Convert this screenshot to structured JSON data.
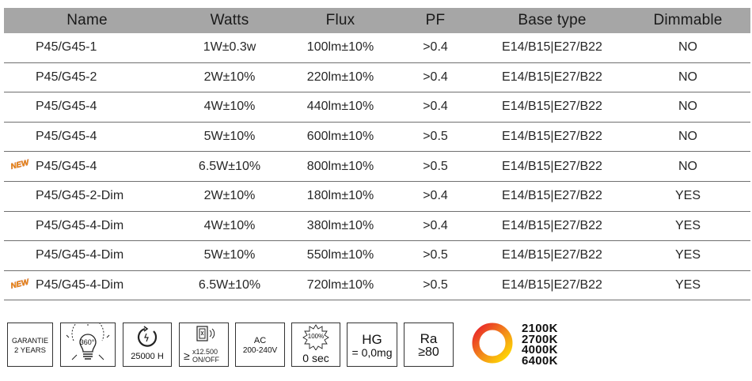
{
  "table": {
    "headers": [
      "Name",
      "Watts",
      "Flux",
      "PF",
      "Base type",
      "Dimmable"
    ],
    "rows": [
      {
        "name": "P45/G45-1",
        "watts": "1W±0.3w",
        "flux": "100lm±10%",
        "pf": ">0.4",
        "base": "E14/B15|E27/B22",
        "dimmable": "NO",
        "is_new": false
      },
      {
        "name": "P45/G45-2",
        "watts": "2W±10%",
        "flux": "220lm±10%",
        "pf": ">0.4",
        "base": "E14/B15|E27/B22",
        "dimmable": "NO",
        "is_new": false
      },
      {
        "name": "P45/G45-4",
        "watts": "4W±10%",
        "flux": "440lm±10%",
        "pf": ">0.4",
        "base": "E14/B15|E27/B22",
        "dimmable": "NO",
        "is_new": false
      },
      {
        "name": "P45/G45-4",
        "watts": "5W±10%",
        "flux": "600lm±10%",
        "pf": ">0.5",
        "base": "E14/B15|E27/B22",
        "dimmable": "NO",
        "is_new": false
      },
      {
        "name": "P45/G45-4",
        "watts": "6.5W±10%",
        "flux": "800lm±10%",
        "pf": ">0.5",
        "base": "E14/B15|E27/B22",
        "dimmable": "NO",
        "is_new": true
      },
      {
        "name": "P45/G45-2-Dim",
        "watts": "2W±10%",
        "flux": "180lm±10%",
        "pf": ">0.4",
        "base": "E14/B15|E27/B22",
        "dimmable": "YES",
        "is_new": false
      },
      {
        "name": "P45/G45-4-Dim",
        "watts": "4W±10%",
        "flux": "380lm±10%",
        "pf": ">0.4",
        "base": "E14/B15|E27/B22",
        "dimmable": "YES",
        "is_new": false
      },
      {
        "name": "P45/G45-4-Dim",
        "watts": "5W±10%",
        "flux": "550lm±10%",
        "pf": ">0.5",
        "base": "E14/B15|E27/B22",
        "dimmable": "YES",
        "is_new": false
      },
      {
        "name": "P45/G45-4-Dim",
        "watts": "6.5W±10%",
        "flux": "720lm±10%",
        "pf": ">0.5",
        "base": "E14/B15|E27/B22",
        "dimmable": "YES",
        "is_new": true
      }
    ],
    "new_badge_label": "NEW"
  },
  "icons": {
    "warranty": {
      "line1": "GARANTIE",
      "line2": "2 YEARS"
    },
    "beam_angle": {
      "label": "360°",
      "icon": "bulb-beam-icon"
    },
    "lifetime": {
      "label": "25000 H",
      "icon": "clock-icon"
    },
    "switching": {
      "prefix": "≥",
      "count": "x12.500",
      "label": "ON/OFF",
      "icon": "switch-icon"
    },
    "voltage": {
      "line1": "AC",
      "line2": "200-240V"
    },
    "warmup": {
      "badge": "100%",
      "label": "0 sec",
      "icon": "starburst-icon"
    },
    "mercury": {
      "line1": "HG",
      "line2": "= 0,0mg"
    },
    "cri": {
      "line1": "Ra",
      "line2": "≥80"
    },
    "color_temps": [
      "2100K",
      "2700K",
      "4000K",
      "6400K"
    ]
  },
  "colors": {
    "header_bg": "#a6a6a6",
    "ring_red": "#e8202a",
    "ring_orange": "#f39019",
    "ring_yellow": "#ffe000"
  }
}
